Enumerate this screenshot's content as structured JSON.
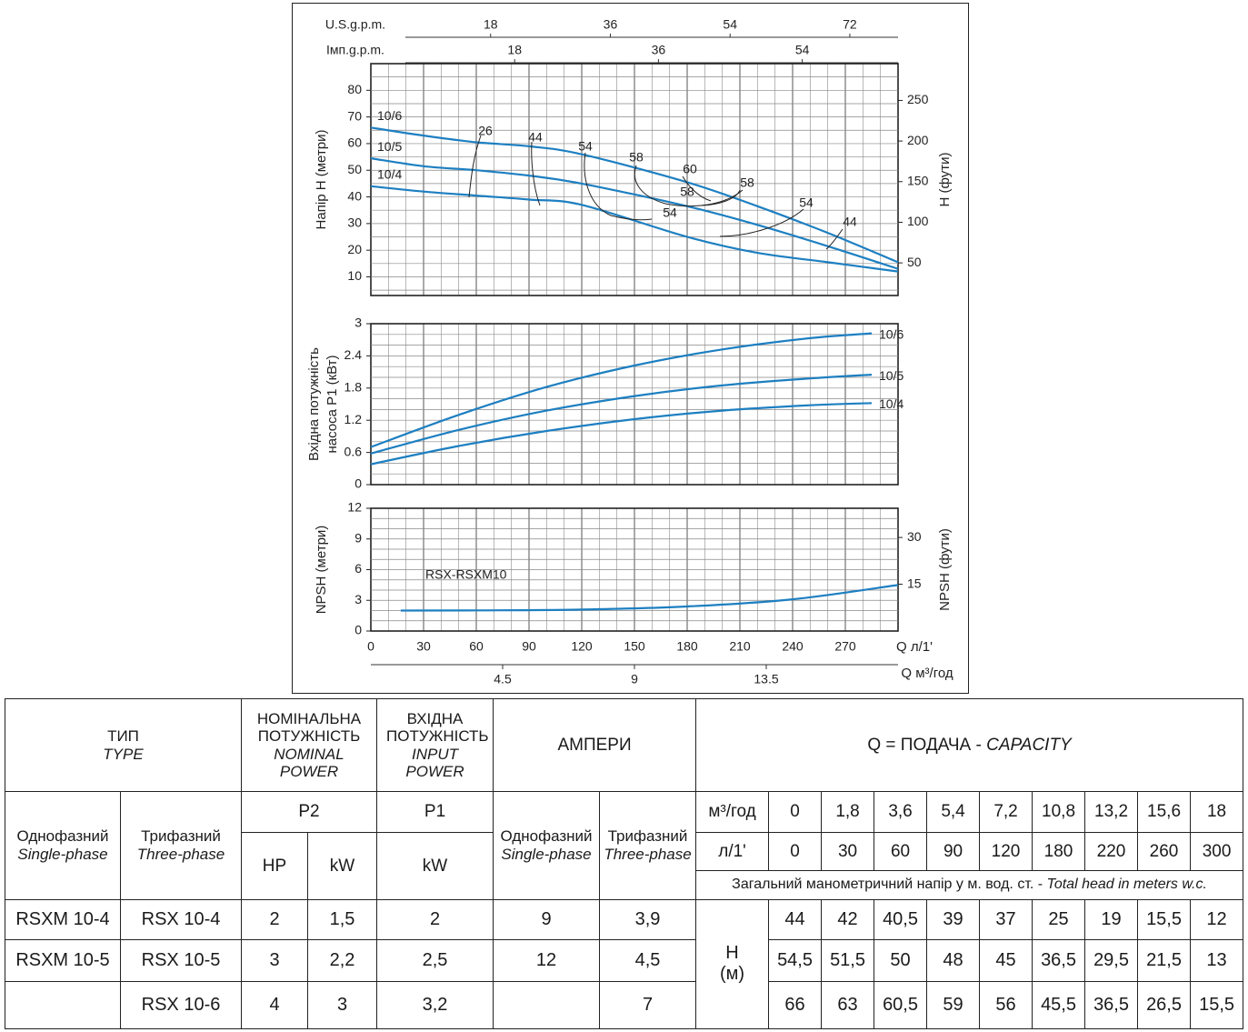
{
  "chart_data": {
    "top_scales": [
      {
        "label": "U.S.g.p.m.",
        "ticks": [
          18,
          36,
          54,
          72
        ],
        "per_lmin": 0.264172
      },
      {
        "label": "Імп.g.p.m.",
        "ticks": [
          18,
          36,
          54
        ],
        "per_lmin": 0.219969
      }
    ],
    "x_axis": {
      "label": "Q л/1'",
      "ticks": [
        0,
        30,
        60,
        90,
        120,
        150,
        180,
        210,
        240,
        270
      ],
      "range": [
        0,
        300
      ]
    },
    "x2_axis": {
      "label": "Q м³/год",
      "ticks": [
        "4.5",
        "9",
        "13.5"
      ],
      "factor": 0.06
    },
    "panels": [
      {
        "id": "head",
        "type": "line",
        "ylabel": "Напір H (метри)",
        "y2label": "H (фути)",
        "yrange": [
          3,
          90
        ],
        "yticks": [
          10,
          20,
          30,
          40,
          50,
          60,
          70,
          80
        ],
        "y2ticks": [
          50,
          100,
          150,
          200,
          250
        ],
        "y2_per_unit": 3.28084,
        "series": [
          {
            "name": "10/6",
            "x": [
              0,
              30,
              60,
              90,
              120,
              180,
              220,
              260,
              300
            ],
            "y": [
              66,
              63,
              60.5,
              59,
              56,
              45.5,
              36.5,
              26.5,
              15.5
            ]
          },
          {
            "name": "10/5",
            "x": [
              0,
              30,
              60,
              90,
              120,
              180,
              220,
              260,
              300
            ],
            "y": [
              54.5,
              51.5,
              50,
              48,
              45,
              36.5,
              29.5,
              21.5,
              13
            ]
          },
          {
            "name": "10/4",
            "x": [
              0,
              30,
              60,
              90,
              120,
              180,
              220,
              260,
              300
            ],
            "y": [
              44,
              42,
              40.5,
              39,
              37,
              25,
              19,
              15.5,
              12
            ]
          }
        ],
        "efficiency_labels": [
          "26",
          "44",
          "54",
          "58",
          "60",
          "58",
          "54",
          "44",
          "54"
        ]
      },
      {
        "id": "power",
        "type": "line",
        "ylabel": "Вхідна потужність насоса P1 (кВт)",
        "yrange": [
          0,
          3
        ],
        "yticks": [
          "0",
          "0.6",
          "1.2",
          "1.8",
          "2.4",
          "3"
        ],
        "series": [
          {
            "name": "10/6",
            "x": [
              0,
              50,
              100,
              150,
              200,
              250,
              285
            ],
            "y": [
              0.7,
              1.3,
              1.82,
              2.22,
              2.52,
              2.73,
              2.82
            ]
          },
          {
            "name": "10/5",
            "x": [
              0,
              50,
              100,
              150,
              200,
              250,
              285
            ],
            "y": [
              0.58,
              1.02,
              1.38,
              1.65,
              1.85,
              1.98,
              2.05
            ]
          },
          {
            "name": "10/4",
            "x": [
              0,
              50,
              100,
              150,
              200,
              250,
              285
            ],
            "y": [
              0.38,
              0.72,
              1.0,
              1.22,
              1.38,
              1.48,
              1.52
            ]
          }
        ]
      },
      {
        "id": "npsh",
        "type": "line",
        "ylabel": "NPSH (метри)",
        "y2label": "NPSH (фути)",
        "yrange": [
          0,
          12
        ],
        "yticks": [
          0,
          3,
          6,
          9,
          12
        ],
        "y2ticks": [
          15,
          30
        ],
        "y2_per_unit": 3.28084,
        "series_label": "RSX-RSXM10",
        "series": [
          {
            "name": "RSX-RSXM10",
            "x": [
              17,
              60,
              120,
              180,
              240,
              300
            ],
            "y": [
              2.0,
              2.02,
              2.1,
              2.4,
              3.1,
              4.5
            ]
          }
        ]
      }
    ]
  },
  "table": {
    "head": {
      "type_uk": "ТИП",
      "type_en": "TYPE",
      "nominal_uk": "НОМІНАЛЬНА ПОТУЖНІСТЬ",
      "nominal_en": "NOMINAL POWER",
      "input_uk": "ВХІДНА ПОТУЖНІСТЬ",
      "input_en": "INPUT POWER",
      "amps": "АМПЕРИ",
      "capacity_uk": "Q = ПОДАЧА - ",
      "capacity_en": "CAPACITY"
    },
    "sub": {
      "single_uk": "Однофазний",
      "single_en": "Single-phase",
      "three_uk": "Трифазний",
      "three_en": "Three-phase",
      "p2": "P2",
      "p1": "P1",
      "hp": "HP",
      "kw": "kW",
      "unit_m3h": "м³/год",
      "unit_lmin": "л/1'",
      "head_note_uk": "Загальний манометричний напір у м. вод. ст. - ",
      "head_note_en": "Total head in meters w.c.",
      "h_label": "H",
      "h_unit": "(м)"
    },
    "m3h": [
      "0",
      "1,8",
      "3,6",
      "5,4",
      "7,2",
      "10,8",
      "13,2",
      "15,6",
      "18"
    ],
    "lmin": [
      "0",
      "30",
      "60",
      "90",
      "120",
      "180",
      "220",
      "260",
      "300"
    ],
    "rows": [
      {
        "single": "RSXM 10-4",
        "three": "RSX 10-4",
        "hp": "2",
        "kw": "1,5",
        "p1": "2",
        "a1": "9",
        "a3": "3,9",
        "h": [
          "44",
          "42",
          "40,5",
          "39",
          "37",
          "25",
          "19",
          "15,5",
          "12"
        ]
      },
      {
        "single": "RSXM 10-5",
        "three": "RSX 10-5",
        "hp": "3",
        "kw": "2,2",
        "p1": "2,5",
        "a1": "12",
        "a3": "4,5",
        "h": [
          "54,5",
          "51,5",
          "50",
          "48",
          "45",
          "36,5",
          "29,5",
          "21,5",
          "13"
        ]
      },
      {
        "single": "",
        "three": "RSX 10-6",
        "hp": "4",
        "kw": "3",
        "p1": "3,2",
        "a1": "",
        "a3": "7",
        "h": [
          "66",
          "63",
          "60,5",
          "59",
          "56",
          "45,5",
          "36,5",
          "26,5",
          "15,5"
        ]
      }
    ]
  }
}
